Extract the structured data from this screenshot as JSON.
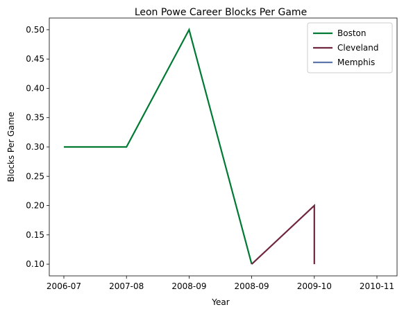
{
  "chart_data": {
    "type": "line",
    "title": "Leon Powe Career Blocks Per Game",
    "xlabel": "Year",
    "ylabel": "Blocks Per Game",
    "categories": [
      "2006-07",
      "2007-08",
      "2008-09",
      "2008-09",
      "2009-10",
      "2010-11"
    ],
    "ylim": [
      0.08,
      0.52
    ],
    "yticks": [
      "0.10",
      "0.15",
      "0.20",
      "0.25",
      "0.30",
      "0.35",
      "0.40",
      "0.45",
      "0.50"
    ],
    "grid": false,
    "legend_position": "top-right",
    "series": [
      {
        "name": "Boston",
        "color": "#007a33",
        "points": [
          [
            0,
            0.3
          ],
          [
            1,
            0.3
          ],
          [
            2,
            0.5
          ],
          [
            3,
            0.1
          ]
        ]
      },
      {
        "name": "Cleveland",
        "color": "#6f263d",
        "points": [
          [
            3,
            0.1
          ],
          [
            4,
            0.2
          ],
          [
            4,
            0.1
          ]
        ]
      },
      {
        "name": "Memphis",
        "color": "#5d76a9",
        "points": []
      }
    ]
  }
}
